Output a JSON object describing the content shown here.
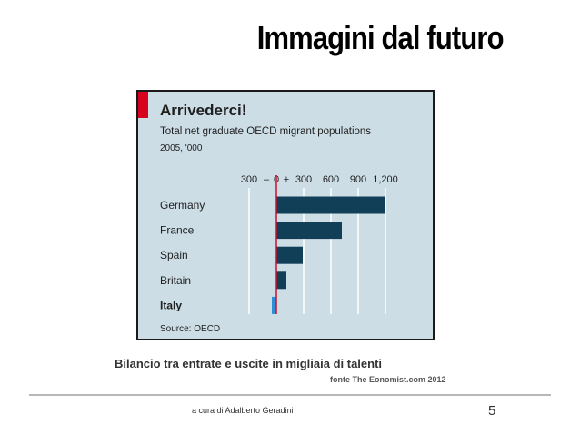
{
  "slide": {
    "title": "Immagini dal futuro",
    "caption": "Bilancio tra entrate e uscite in migliaia di talenti",
    "source_note": "fonte The Eonomist.com 2012",
    "author": "a cura di Adalberto Geradini",
    "page_number": "5"
  },
  "chart_data": {
    "type": "bar",
    "orientation": "horizontal",
    "title": "Arrivederci!",
    "subtitle": "Total net graduate OECD migrant populations",
    "subtitle2": "2005, '000",
    "source": "Source: OECD",
    "categories": [
      "Germany",
      "France",
      "Spain",
      "Britain",
      "Italy"
    ],
    "values": [
      1200,
      720,
      290,
      110,
      -50
    ],
    "xlim": [
      -300,
      1200
    ],
    "ticks": [
      {
        "value": -300,
        "label": "300"
      },
      {
        "value": 0,
        "label": "0"
      },
      {
        "value": 300,
        "label": "300"
      },
      {
        "value": 600,
        "label": "600"
      },
      {
        "value": 900,
        "label": "900"
      },
      {
        "value": 1200,
        "label": "1,200"
      }
    ],
    "minus_label": "–",
    "plus_label": "+",
    "highlight_category": "Italy",
    "grid": true,
    "colors": {
      "bar": "#123f58",
      "highlight_bar": "#2f8fd6",
      "zero_line": "#c8102e",
      "accent": "#d7001f",
      "background": "#ccdde6",
      "gridline": "#ffffff",
      "text": "#1f1f1f"
    }
  }
}
